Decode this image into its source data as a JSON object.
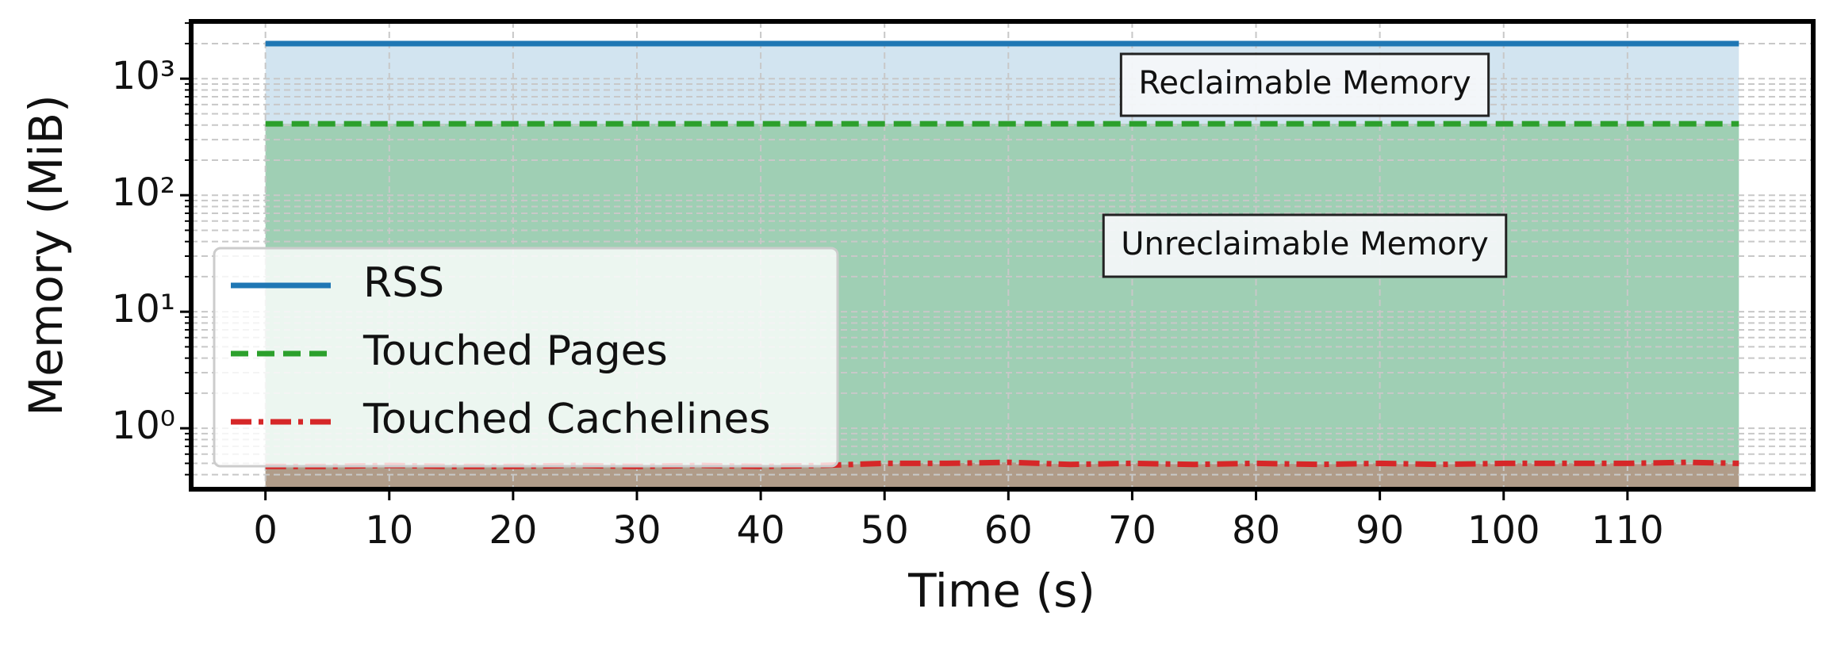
{
  "chart_data": {
    "type": "line",
    "x_label": "Time (s)",
    "y_label": "Memory (MiB)",
    "log_y": true,
    "grid": true,
    "legend_position": "lower left",
    "x": [
      0,
      5,
      10,
      15,
      20,
      25,
      30,
      35,
      40,
      45,
      50,
      55,
      60,
      65,
      70,
      75,
      80,
      85,
      90,
      95,
      100,
      105,
      110,
      115,
      119
    ],
    "series": [
      {
        "name": "RSS",
        "color": "#1f77b4",
        "style": "solid",
        "values": [
          2000,
          2000,
          2000,
          2000,
          2000,
          2000,
          2000,
          2000,
          2000,
          2000,
          2000,
          2000,
          2000,
          2000,
          2000,
          2000,
          2000,
          2000,
          2000,
          2000,
          2000,
          2000,
          2000,
          2000,
          2000
        ]
      },
      {
        "name": "Touched Pages",
        "color": "#2ca02c",
        "style": "dashed",
        "values": [
          410,
          410,
          410,
          410,
          410,
          410,
          410,
          410,
          410,
          410,
          410,
          410,
          410,
          410,
          410,
          410,
          410,
          410,
          410,
          410,
          410,
          410,
          410,
          410,
          410
        ]
      },
      {
        "name": "Touched Cachelines",
        "color": "#d62728",
        "style": "dashdot",
        "values": [
          0.47,
          0.47,
          0.48,
          0.47,
          0.47,
          0.48,
          0.47,
          0.48,
          0.47,
          0.48,
          0.5,
          0.5,
          0.51,
          0.49,
          0.5,
          0.49,
          0.5,
          0.49,
          0.5,
          0.49,
          0.5,
          0.5,
          0.5,
          0.51,
          0.5
        ]
      }
    ],
    "xlim": [
      -6,
      125
    ],
    "ylim": [
      0.3,
      3100
    ],
    "xticks": [
      0,
      10,
      20,
      30,
      40,
      50,
      60,
      70,
      80,
      90,
      100,
      110
    ],
    "yticks": [
      {
        "value": 1,
        "label": "10⁰"
      },
      {
        "value": 10,
        "label": "10¹"
      },
      {
        "value": 100,
        "label": "10²"
      },
      {
        "value": 1000,
        "label": "10³"
      }
    ],
    "minor_yticks": [
      0.4,
      0.5,
      0.6,
      0.7,
      0.8,
      0.9,
      2,
      3,
      4,
      5,
      6,
      7,
      8,
      9,
      20,
      30,
      40,
      50,
      60,
      70,
      80,
      90,
      200,
      300,
      400,
      500,
      600,
      700,
      800,
      900,
      2000,
      3000
    ],
    "annotations": [
      "Reclaimable Memory",
      "Unreclaimable Memory"
    ]
  }
}
